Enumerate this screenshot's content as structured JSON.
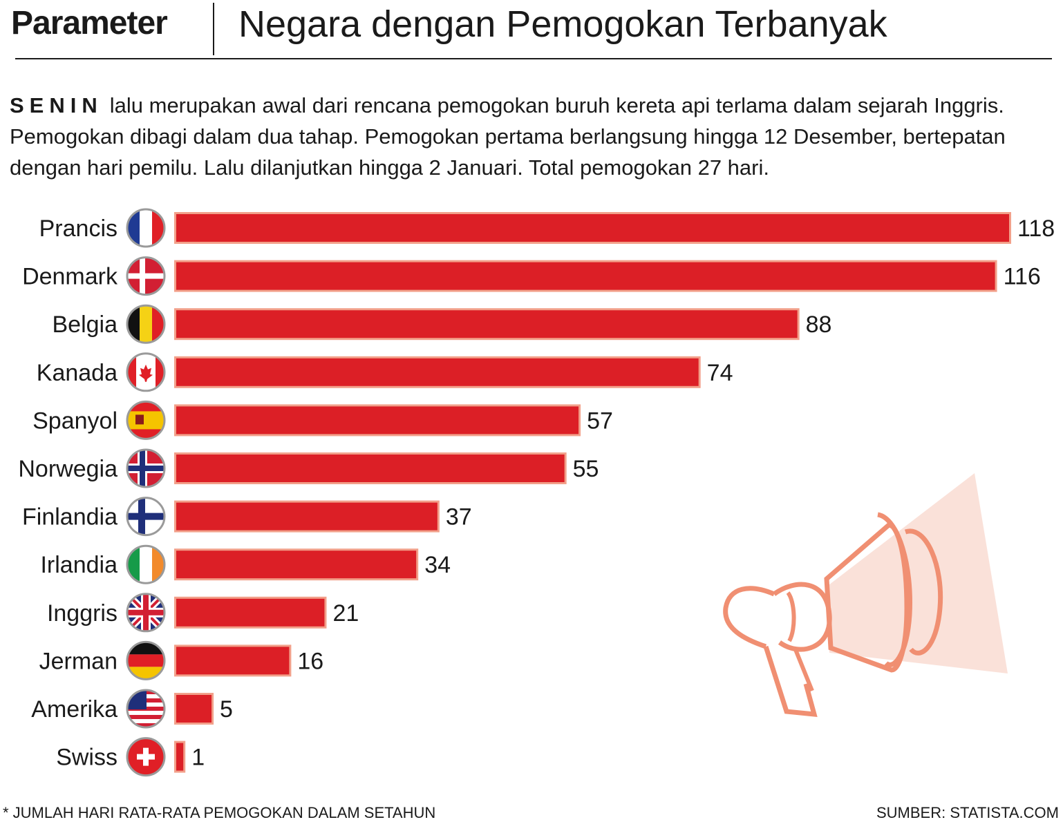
{
  "header": {
    "brand": "Parameter",
    "title": "Negara dengan Pemogokan Terbanyak"
  },
  "intro": {
    "lead": "SENIN",
    "text": "lalu merupakan awal dari rencana pemogokan buruh kereta api terlama dalam sejarah Inggris. Pemogokan dibagi dalam dua tahap. Pemogokan pertama berlangsung hingga 12 Desember, bertepatan dengan hari pemilu. Lalu dilanjutkan hingga 2 Januari. Total pemogokan 27 hari."
  },
  "footer": {
    "footnote": "* JUMLAH HARI RATA-RATA PEMOGOKAN DALAM SETAHUN",
    "source": "SUMBER: STATISTA.COM"
  },
  "colors": {
    "bar": "#dc1f26",
    "bar_edge": "#f2a08a",
    "megaphone": "#f08f72"
  },
  "chart_data": {
    "type": "bar",
    "orientation": "horizontal",
    "categories": [
      "Prancis",
      "Denmark",
      "Belgia",
      "Kanada",
      "Spanyol",
      "Norwegia",
      "Finlandia",
      "Irlandia",
      "Inggris",
      "Jerman",
      "Amerika",
      "Swiss"
    ],
    "flags": [
      "france",
      "denmark",
      "belgium",
      "canada",
      "spain",
      "norway",
      "finland",
      "ireland",
      "uk",
      "germany",
      "usa",
      "switzerland"
    ],
    "values": [
      118,
      116,
      88,
      74,
      57,
      55,
      37,
      34,
      21,
      16,
      5,
      1
    ],
    "xlim": [
      0,
      118
    ],
    "grid": false,
    "legend": "none"
  }
}
